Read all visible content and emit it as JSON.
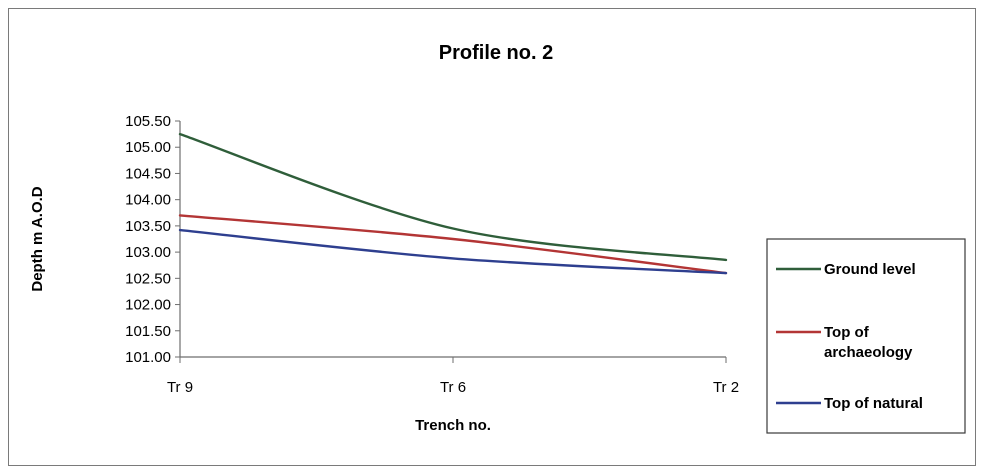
{
  "chart_data": {
    "type": "line",
    "title": "Profile no. 2",
    "xlabel": "Trench no.",
    "ylabel": "Depth m A.O.D",
    "categories": [
      "Tr 9",
      "Tr 6",
      "Tr 2"
    ],
    "ylim": [
      101.0,
      105.5
    ],
    "yticks": [
      "105.50",
      "105.00",
      "104.50",
      "104.00",
      "103.50",
      "103.00",
      "102.50",
      "102.00",
      "101.50",
      "101.00"
    ],
    "grid": false,
    "legend_position": "right",
    "series": [
      {
        "name": "Ground level",
        "color": "#2f5e3a",
        "values": [
          105.25,
          103.45,
          102.85
        ]
      },
      {
        "name": "Top of archaeology",
        "color": "#b33535",
        "values": [
          103.7,
          103.25,
          102.6
        ]
      },
      {
        "name": "Top of natural",
        "color": "#2e3f8f",
        "values": [
          103.42,
          102.88,
          102.6
        ]
      }
    ],
    "legend_lines": [
      [
        "Ground level"
      ],
      [
        "Top of",
        "archaeology"
      ],
      [
        "Top of natural"
      ]
    ]
  }
}
